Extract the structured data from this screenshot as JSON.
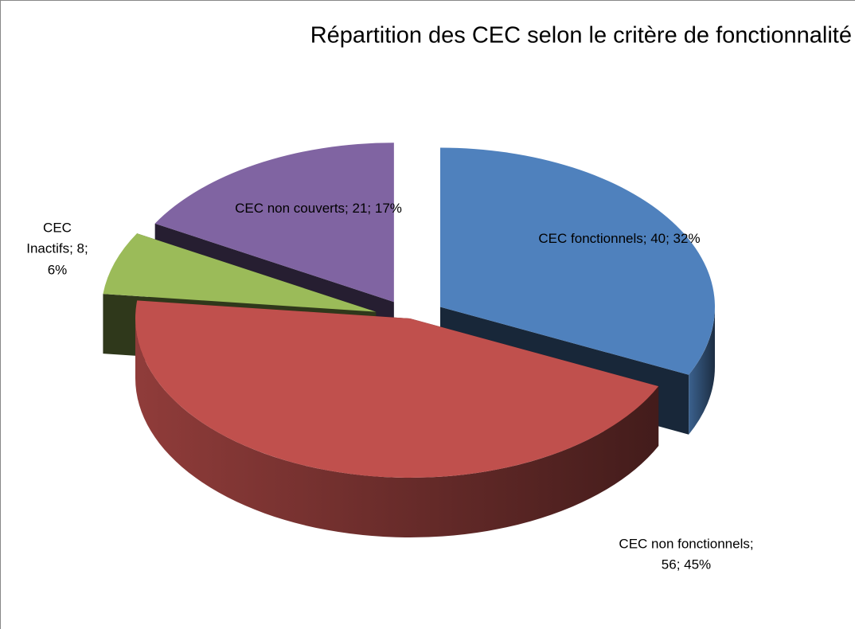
{
  "chart_data": {
    "type": "pie3d",
    "title": "Répartition des CEC selon le critère de fonctionnalité",
    "values": [
      40,
      56,
      8,
      21
    ],
    "value_labels": [
      "CEC fonctionnels; 40; 32%",
      "CEC non fonctionnels; 56; 45%",
      "CEC Inactifs; 8; 6%",
      "CEC non couverts; 21; 17%"
    ],
    "colors": [
      "#4f81bd",
      "#c0504d",
      "#9bbb59",
      "#8064a2"
    ]
  }
}
